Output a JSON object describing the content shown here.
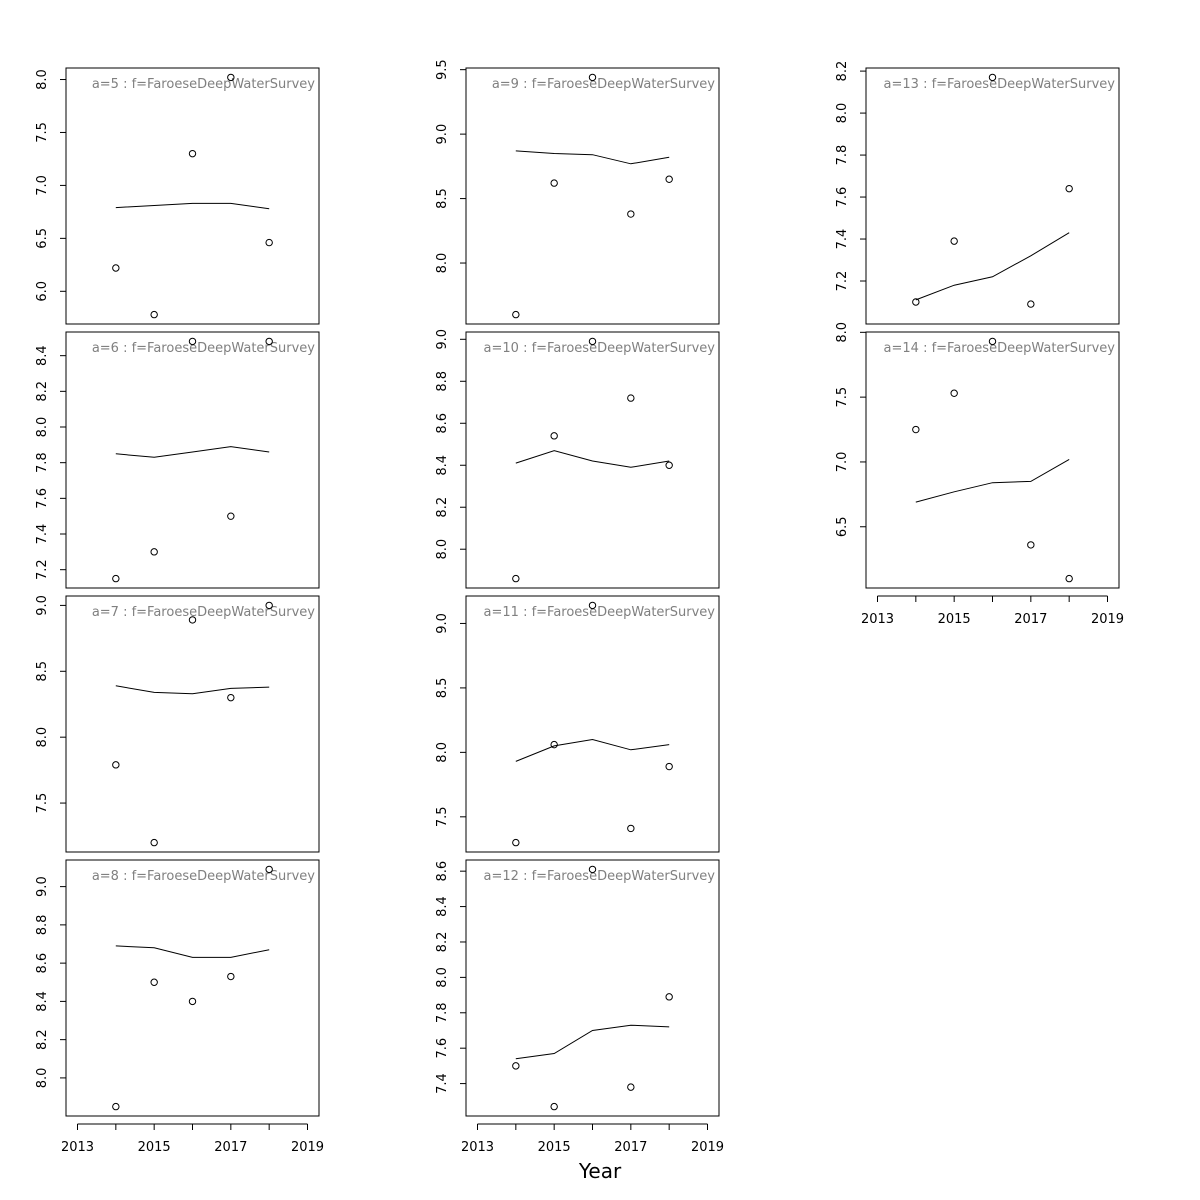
{
  "figure": {
    "xlabel": "Year",
    "line_color": "#000000",
    "title_color": "#808080"
  },
  "chart_data": [
    {
      "type": "scatter",
      "title": "a=5 : f=FaroeseDeepWaterSurvey",
      "x": [
        2014,
        2015,
        2016,
        2017,
        2018
      ],
      "observed": [
        6.22,
        5.78,
        7.3,
        8.02,
        6.46
      ],
      "fitted": [
        6.79,
        6.81,
        6.83,
        6.83,
        6.78
      ],
      "xlim": [
        2013,
        2019
      ],
      "ylim": [
        5.78,
        8.02
      ],
      "xticks": [
        "2013",
        "2015",
        "2017",
        "2019"
      ],
      "yticks": [
        "6.0",
        "6.5",
        "7.0",
        "7.5",
        "8.0"
      ],
      "show_xaxis": false
    },
    {
      "type": "scatter",
      "title": "a=6 : f=FaroeseDeepWaterSurvey",
      "x": [
        2014,
        2015,
        2016,
        2017,
        2018
      ],
      "observed": [
        7.15,
        7.3,
        8.48,
        7.5,
        8.48
      ],
      "fitted": [
        7.85,
        7.83,
        7.86,
        7.89,
        7.86
      ],
      "xlim": [
        2013,
        2019
      ],
      "ylim": [
        7.15,
        8.48
      ],
      "xticks": [
        "2013",
        "2015",
        "2017",
        "2019"
      ],
      "yticks": [
        "7.2",
        "7.4",
        "7.6",
        "7.8",
        "8.0",
        "8.2",
        "8.4"
      ],
      "show_xaxis": false
    },
    {
      "type": "scatter",
      "title": "a=7 : f=FaroeseDeepWaterSurvey",
      "x": [
        2014,
        2015,
        2016,
        2017,
        2018
      ],
      "observed": [
        7.79,
        7.2,
        8.89,
        8.3,
        9.0
      ],
      "fitted": [
        8.39,
        8.34,
        8.33,
        8.37,
        8.38
      ],
      "xlim": [
        2013,
        2019
      ],
      "ylim": [
        7.2,
        9.0
      ],
      "xticks": [
        "2013",
        "2015",
        "2017",
        "2019"
      ],
      "yticks": [
        "7.5",
        "8.0",
        "8.5",
        "9.0"
      ],
      "show_xaxis": false
    },
    {
      "type": "scatter",
      "title": "a=8 : f=FaroeseDeepWaterSurvey",
      "x": [
        2014,
        2015,
        2016,
        2017,
        2018
      ],
      "observed": [
        7.85,
        8.5,
        8.4,
        8.53,
        9.09
      ],
      "fitted": [
        8.69,
        8.68,
        8.63,
        8.63,
        8.67
      ],
      "xlim": [
        2013,
        2019
      ],
      "ylim": [
        7.85,
        9.09
      ],
      "xticks": [
        "2013",
        "2015",
        "2017",
        "2019"
      ],
      "yticks": [
        "8.0",
        "8.2",
        "8.4",
        "8.6",
        "8.8",
        "9.0"
      ],
      "show_xaxis": true
    },
    {
      "type": "scatter",
      "title": "a=9 : f=FaroeseDeepWaterSurvey",
      "x": [
        2014,
        2015,
        2016,
        2017,
        2018
      ],
      "observed": [
        7.6,
        8.62,
        9.44,
        8.38,
        8.65
      ],
      "fitted": [
        8.87,
        8.85,
        8.84,
        8.77,
        8.82
      ],
      "xlim": [
        2013,
        2019
      ],
      "ylim": [
        7.6,
        9.44
      ],
      "xticks": [
        "2013",
        "2015",
        "2017",
        "2019"
      ],
      "yticks": [
        "8.0",
        "8.5",
        "9.0",
        "9.5"
      ],
      "show_xaxis": false
    },
    {
      "type": "scatter",
      "title": "a=10 : f=FaroeseDeepWaterSurvey",
      "x": [
        2014,
        2015,
        2016,
        2017,
        2018
      ],
      "observed": [
        7.86,
        8.54,
        8.99,
        8.72,
        8.4
      ],
      "fitted": [
        8.41,
        8.47,
        8.42,
        8.39,
        8.42
      ],
      "xlim": [
        2013,
        2019
      ],
      "ylim": [
        7.86,
        8.99
      ],
      "xticks": [
        "2013",
        "2015",
        "2017",
        "2019"
      ],
      "yticks": [
        "8.0",
        "8.2",
        "8.4",
        "8.6",
        "8.8",
        "9.0"
      ],
      "show_xaxis": false
    },
    {
      "type": "scatter",
      "title": "a=11 : f=FaroeseDeepWaterSurvey",
      "x": [
        2014,
        2015,
        2016,
        2017,
        2018
      ],
      "observed": [
        7.3,
        8.06,
        9.14,
        7.41,
        7.89
      ],
      "fitted": [
        7.93,
        8.05,
        8.1,
        8.02,
        8.06
      ],
      "xlim": [
        2013,
        2019
      ],
      "ylim": [
        7.3,
        9.14
      ],
      "xticks": [
        "2013",
        "2015",
        "2017",
        "2019"
      ],
      "yticks": [
        "7.5",
        "8.0",
        "8.5",
        "9.0"
      ],
      "show_xaxis": false
    },
    {
      "type": "scatter",
      "title": "a=12 : f=FaroeseDeepWaterSurvey",
      "x": [
        2014,
        2015,
        2016,
        2017,
        2018
      ],
      "observed": [
        7.5,
        7.27,
        8.61,
        7.38,
        7.89
      ],
      "fitted": [
        7.54,
        7.57,
        7.7,
        7.73,
        7.72
      ],
      "xlim": [
        2013,
        2019
      ],
      "ylim": [
        7.27,
        8.61
      ],
      "xticks": [
        "2013",
        "2015",
        "2017",
        "2019"
      ],
      "yticks": [
        "7.4",
        "7.6",
        "7.8",
        "8.0",
        "8.2",
        "8.4",
        "8.6"
      ],
      "show_xaxis": true
    },
    {
      "type": "scatter",
      "title": "a=13 : f=FaroeseDeepWaterSurvey",
      "x": [
        2014,
        2015,
        2016,
        2017,
        2018
      ],
      "observed": [
        7.1,
        7.39,
        8.17,
        7.09,
        7.64
      ],
      "fitted": [
        7.11,
        7.18,
        7.22,
        7.32,
        7.43
      ],
      "xlim": [
        2013,
        2019
      ],
      "ylim": [
        7.04,
        8.17
      ],
      "xticks": [
        "2013",
        "2015",
        "2017",
        "2019"
      ],
      "yticks": [
        "7.2",
        "7.4",
        "7.6",
        "7.8",
        "8.0",
        "8.2"
      ],
      "show_xaxis": false
    },
    {
      "type": "scatter",
      "title": "a=14 : f=FaroeseDeepWaterSurvey",
      "x": [
        2014,
        2015,
        2016,
        2017,
        2018
      ],
      "observed": [
        7.25,
        7.53,
        7.93,
        6.36,
        6.1
      ],
      "fitted": [
        6.69,
        6.77,
        6.84,
        6.85,
        7.02
      ],
      "xlim": [
        2013,
        2019
      ],
      "ylim": [
        6.1,
        7.93
      ],
      "xticks": [
        "2013",
        "2015",
        "2017",
        "2019"
      ],
      "yticks": [
        "6.5",
        "7.0",
        "7.5",
        "8.0"
      ],
      "show_xaxis": true
    }
  ]
}
